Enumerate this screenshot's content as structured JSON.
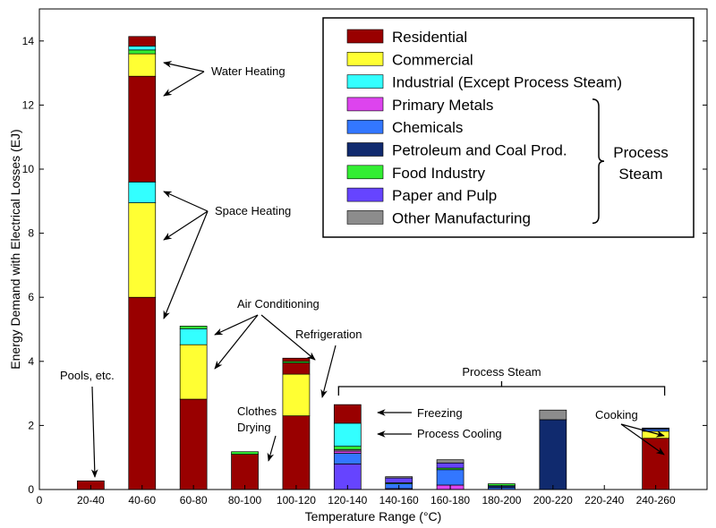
{
  "chart_data": {
    "type": "bar",
    "stacked": true,
    "xlabel": "Temperature Range (°C)",
    "ylabel": "Energy Demand with Electrical Losses (EJ)",
    "ylim": [
      0,
      15
    ],
    "yticks": [
      0,
      2,
      4,
      6,
      8,
      10,
      12,
      14
    ],
    "x_zero_label": "0",
    "categories": [
      "20-40",
      "40-60",
      "60-80",
      "80-100",
      "100-120",
      "120-140",
      "140-160",
      "160-180",
      "180-200",
      "200-220",
      "220-240",
      "240-260"
    ],
    "grid": false,
    "legend_position": "top-right",
    "series": [
      {
        "name": "Residential",
        "color": "#990000",
        "values": [
          0.27,
          6.0,
          2.82,
          1.1,
          2.3,
          0,
          0,
          0,
          0,
          0,
          0,
          1.6
        ]
      },
      {
        "name": "Commercial",
        "color": "#ffff33",
        "values": [
          0,
          2.95,
          1.7,
          0,
          1.3,
          0,
          0,
          0,
          0,
          0,
          0,
          0.22
        ]
      },
      {
        "name": "Industrial (Except Process Steam)",
        "color": "#33ffff",
        "values": [
          0,
          0.65,
          0.5,
          0,
          0,
          0.72,
          0,
          0,
          0,
          0,
          0,
          0
        ]
      },
      {
        "name": "Primary Metals",
        "color": "#dd44ee",
        "values": [
          0,
          0,
          0,
          0,
          0,
          0.07,
          0.03,
          0.14,
          0,
          0,
          0,
          0
        ]
      },
      {
        "name": "Chemicals",
        "color": "#3377ff",
        "values": [
          0,
          0,
          0,
          0,
          0,
          0.33,
          0.15,
          0.48,
          0.06,
          0,
          0,
          0.06
        ]
      },
      {
        "name": "Petroleum and Coal Prod.",
        "color": "#102a6e",
        "values": [
          0,
          0,
          0,
          0,
          0,
          0,
          0,
          0,
          0.06,
          2.18,
          0,
          0.04
        ]
      },
      {
        "name": "Food Industry",
        "color": "#33ee33",
        "values": [
          0,
          0.12,
          0.08,
          0.08,
          0.05,
          0.1,
          0.03,
          0.05,
          0.06,
          0,
          0,
          0
        ]
      },
      {
        "name": "Paper and Pulp",
        "color": "#6644ff",
        "values": [
          0,
          0,
          0,
          0,
          0,
          0.8,
          0.15,
          0.16,
          0,
          0,
          0,
          0
        ]
      },
      {
        "name": "Other Manufacturing",
        "color": "#8c8c8c",
        "values": [
          0,
          0,
          0,
          0,
          0,
          0.05,
          0.04,
          0.1,
          0,
          0.3,
          0,
          0
        ]
      }
    ],
    "segment_overrides": [
      {
        "category": "40-60",
        "top_residential": 0.3,
        "above_commercial": 1.2
      },
      {
        "category": "60-80",
        "top_residential": 0
      },
      {
        "category": "100-120",
        "top_residential": 0.45
      },
      {
        "category": "120-140",
        "top_residential": 0.58
      }
    ],
    "extra_residential_tops": [
      0,
      0.3,
      0,
      0,
      0.45,
      0.58,
      0,
      0,
      0,
      0,
      0,
      0
    ],
    "water_heating_residential_40_60": 3.3,
    "legend_bracket_label": [
      "Process",
      "Steam"
    ],
    "annotations": {
      "water_heating": "Water Heating",
      "space_heating": "Space Heating",
      "air_conditioning": "Air Conditioning",
      "refrigeration": "Refrigeration",
      "pools": "Pools, etc.",
      "clothes_drying": [
        "Clothes",
        "Drying"
      ],
      "process_steam": "Process Steam",
      "freezing": "Freezing",
      "process_cooling": "Process Cooling",
      "cooking": "Cooking"
    }
  }
}
